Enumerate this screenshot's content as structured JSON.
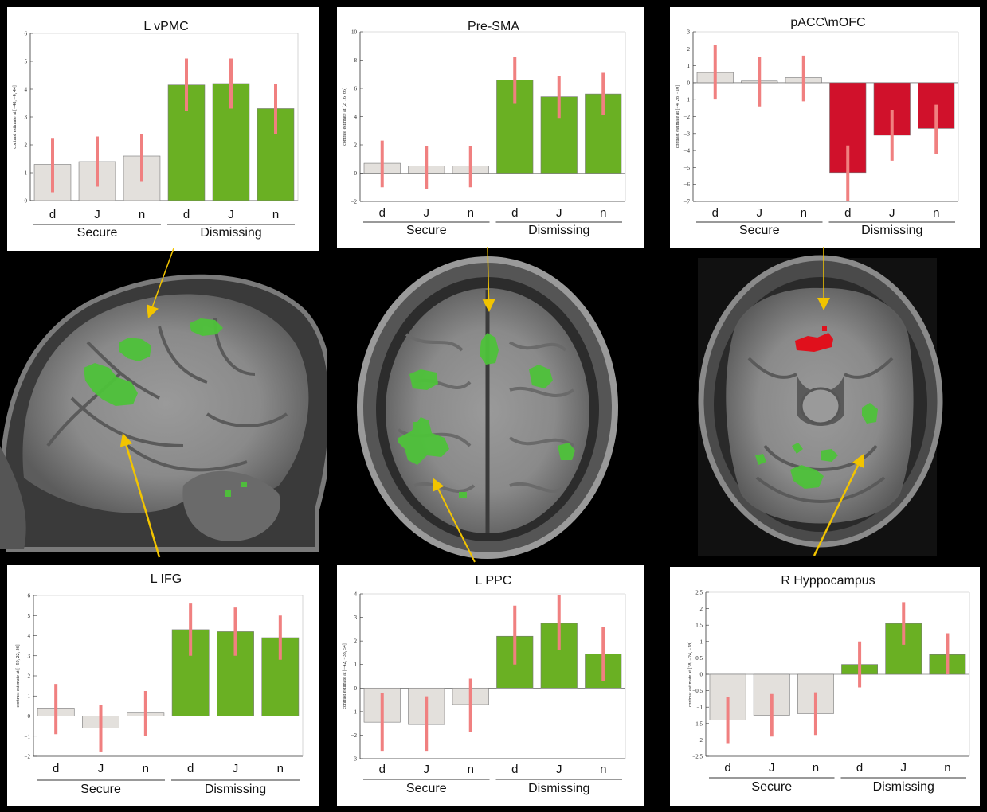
{
  "colors": {
    "secure_bar": "#e3e0dc",
    "dismissing_bar_green": "#6ab023",
    "dismissing_bar_red": "#d0112b",
    "error_bar": "#f08080",
    "arrow": "#f2c400",
    "panel_bg": "#ffffff",
    "background": "#000000",
    "activation_green": "#55c23a",
    "activation_red": "#e0101c"
  },
  "images": [
    {
      "view": "sagittal",
      "activation_color": "green"
    },
    {
      "view": "axial-superior",
      "activation_color": "green"
    },
    {
      "view": "axial-inferior",
      "activation_colors": [
        "red",
        "green"
      ]
    }
  ],
  "chart_data": [
    {
      "type": "bar",
      "title": "L vPMC",
      "ylabel": "contrast estimate at [−48, −4, 44]",
      "ylim": [
        0,
        6
      ],
      "yticks": [
        "0",
        "1",
        "2",
        "3",
        "4",
        "5",
        "6"
      ],
      "categories": [
        "d",
        "J",
        "n",
        "d",
        "J",
        "n"
      ],
      "groups": [
        {
          "label": "Secure",
          "bars": 3
        },
        {
          "label": "Dismissing",
          "bars": 3
        }
      ],
      "values": [
        1.3,
        1.4,
        1.6,
        4.15,
        4.2,
        3.3
      ],
      "error_low": [
        0.3,
        0.5,
        0.7,
        3.2,
        3.3,
        2.4
      ],
      "error_high": [
        2.25,
        2.3,
        2.4,
        5.1,
        5.1,
        4.2
      ],
      "dismissing_color": "green"
    },
    {
      "type": "bar",
      "title": "Pre-SMA",
      "ylabel": "contrast estimate at [2, 16, 66]",
      "ylim": [
        -2,
        10
      ],
      "yticks": [
        "−2",
        "0",
        "2",
        "4",
        "6",
        "8",
        "10"
      ],
      "categories": [
        "d",
        "J",
        "n",
        "d",
        "J",
        "n"
      ],
      "groups": [
        {
          "label": "Secure",
          "bars": 3
        },
        {
          "label": "Dismissing",
          "bars": 3
        }
      ],
      "values": [
        0.7,
        0.5,
        0.5,
        6.6,
        5.4,
        5.6
      ],
      "error_low": [
        -1.0,
        -1.1,
        -1.0,
        4.9,
        3.9,
        4.1
      ],
      "error_high": [
        2.3,
        1.9,
        1.9,
        8.2,
        6.9,
        7.1
      ],
      "dismissing_color": "green"
    },
    {
      "type": "bar",
      "title": "pACC\\mOFC",
      "ylabel": "contrast estimate at [−4, 28, −10]",
      "ylim": [
        -7,
        3
      ],
      "yticks": [
        "−7",
        "−6",
        "−5",
        "−4",
        "−3",
        "−2",
        "−1",
        "0",
        "1",
        "2",
        "3"
      ],
      "categories": [
        "d",
        "J",
        "n",
        "d",
        "J",
        "n"
      ],
      "groups": [
        {
          "label": "Secure",
          "bars": 3
        },
        {
          "label": "Dismissing",
          "bars": 3
        }
      ],
      "values": [
        0.6,
        0.1,
        0.3,
        -5.3,
        -3.1,
        -2.7
      ],
      "error_low": [
        -0.95,
        -1.4,
        -1.1,
        -7.0,
        -4.6,
        -4.2
      ],
      "error_high": [
        2.2,
        1.5,
        1.6,
        -3.7,
        -1.6,
        -1.3
      ],
      "dismissing_color": "red"
    },
    {
      "type": "bar",
      "title": "L IFG",
      "ylabel": "contrast estimate at [−50, 22, 26]",
      "ylim": [
        -2,
        6
      ],
      "yticks": [
        "−2",
        "−1",
        "0",
        "1",
        "2",
        "3",
        "4",
        "5",
        "6"
      ],
      "categories": [
        "d",
        "J",
        "n",
        "d",
        "J",
        "n"
      ],
      "groups": [
        {
          "label": "Secure",
          "bars": 3
        },
        {
          "label": "Dismissing",
          "bars": 3
        }
      ],
      "values": [
        0.4,
        -0.6,
        0.15,
        4.3,
        4.2,
        3.9
      ],
      "error_low": [
        -0.9,
        -1.8,
        -1.0,
        3.0,
        3.0,
        2.8
      ],
      "error_high": [
        1.6,
        0.55,
        1.25,
        5.6,
        5.4,
        5.0
      ],
      "dismissing_color": "green"
    },
    {
      "type": "bar",
      "title": "L PPC",
      "ylabel": "contrast estimate at [−42, −38, 54]",
      "ylim": [
        -3,
        4
      ],
      "yticks": [
        "−3",
        "−2",
        "−1",
        "0",
        "1",
        "2",
        "3",
        "4"
      ],
      "categories": [
        "d",
        "J",
        "n",
        "d",
        "J",
        "n"
      ],
      "groups": [
        {
          "label": "Secure",
          "bars": 3
        },
        {
          "label": "Dismissing",
          "bars": 3
        }
      ],
      "values": [
        -1.45,
        -1.55,
        -0.7,
        2.2,
        2.75,
        1.45
      ],
      "error_low": [
        -2.7,
        -2.7,
        -1.85,
        1.0,
        1.6,
        0.3
      ],
      "error_high": [
        -0.2,
        -0.35,
        0.4,
        3.5,
        3.95,
        2.6
      ],
      "dismissing_color": "green"
    },
    {
      "type": "bar",
      "title": "R Hyppocampus",
      "ylabel": "contrast estimate at [38, −24, −18]",
      "ylim": [
        -2.5,
        2.5
      ],
      "yticks": [
        "−2.5",
        "−2",
        "−1.5",
        "−1",
        "−0.5",
        "0",
        "0.5",
        "1",
        "1.5",
        "2",
        "2.5"
      ],
      "categories": [
        "d",
        "J",
        "n",
        "d",
        "J",
        "n"
      ],
      "groups": [
        {
          "label": "Secure",
          "bars": 3
        },
        {
          "label": "Dismissing",
          "bars": 3
        }
      ],
      "values": [
        -1.4,
        -1.25,
        -1.2,
        0.3,
        1.55,
        0.6
      ],
      "error_low": [
        -2.1,
        -1.9,
        -1.85,
        -0.4,
        0.9,
        0.0
      ],
      "error_high": [
        -0.7,
        -0.6,
        -0.55,
        1.0,
        2.2,
        1.25
      ],
      "dismissing_color": "green"
    }
  ]
}
